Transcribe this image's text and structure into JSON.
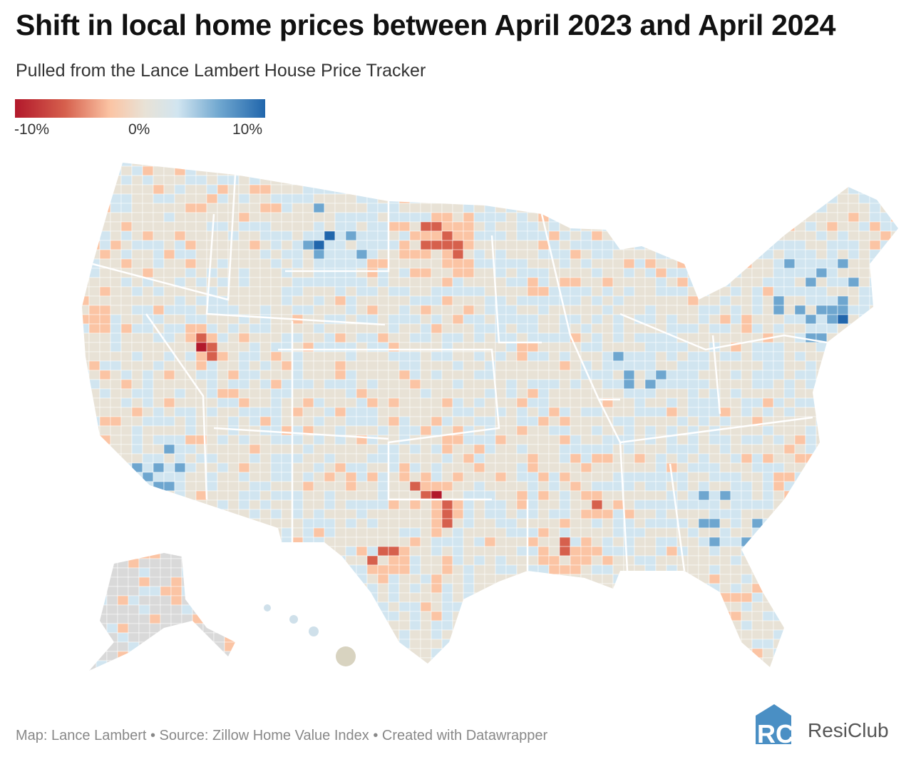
{
  "title": "Shift in local home prices between April 2023 and April 2024",
  "subtitle": "Pulled from the Lance Lambert House Price Tracker",
  "legend": {
    "labels": [
      "-10%",
      "0%",
      "10%"
    ],
    "stops": [
      "#b2182b",
      "#d6604d",
      "#fbc4a4",
      "#e8e2d6",
      "#d1e5f0",
      "#6ea6cf",
      "#2166ac"
    ],
    "no_data_color": "#d9d9d9"
  },
  "footer": "Map: Lance Lambert • Source: Zillow Home Value Index • Created with Datawrapper",
  "logo": {
    "text": "ResiClub",
    "mark": "RC",
    "color": "#4a8fc4"
  }
}
